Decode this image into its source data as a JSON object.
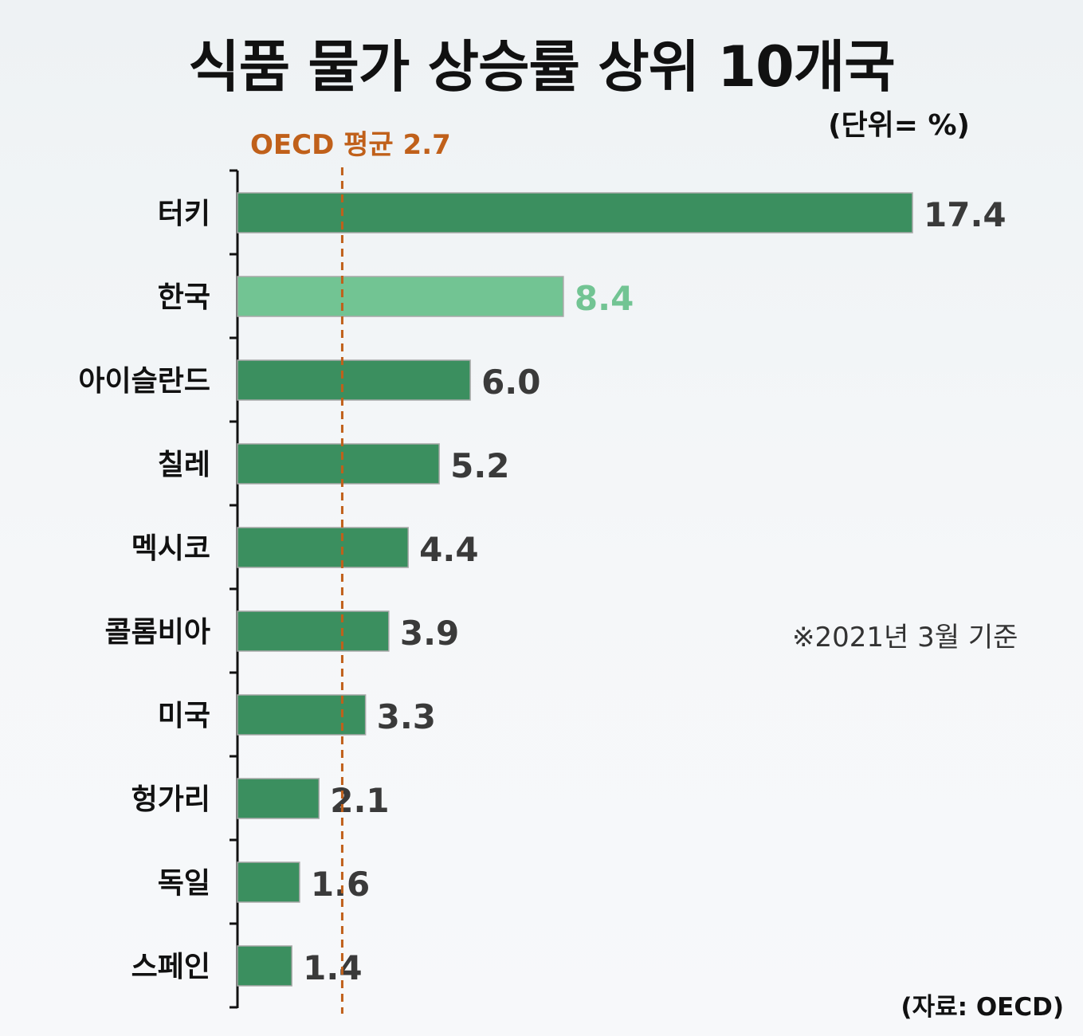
{
  "chart_data": {
    "type": "bar",
    "orientation": "horizontal",
    "title": "식품 물가 상승률 상위 10개국",
    "unit_label": "(단위= %)",
    "categories": [
      "터키",
      "한국",
      "아이슬란드",
      "칠레",
      "멕시코",
      "콜롬비아",
      "미국",
      "헝가리",
      "독일",
      "스페인"
    ],
    "values": [
      17.4,
      8.4,
      6.0,
      5.2,
      4.4,
      3.9,
      3.3,
      2.1,
      1.6,
      1.4
    ],
    "value_labels": [
      "17.4",
      "8.4",
      "6.0",
      "5.2",
      "4.4",
      "3.9",
      "3.3",
      "2.1",
      "1.6",
      "1.4"
    ],
    "highlight_category": "한국",
    "reference_line": {
      "value": 2.7,
      "label": "OECD 평균 2.7",
      "color": "#c0601a",
      "style": "dashed"
    },
    "xlim": [
      0,
      17.4
    ],
    "colors": {
      "bar": "#3b8f5f",
      "highlight": "#72c493",
      "value_text": "#3a3a3a",
      "highlight_text": "#72c493"
    },
    "footnote": "※2021년 3월 기준",
    "source": "(자료: OECD)",
    "grid": false
  }
}
